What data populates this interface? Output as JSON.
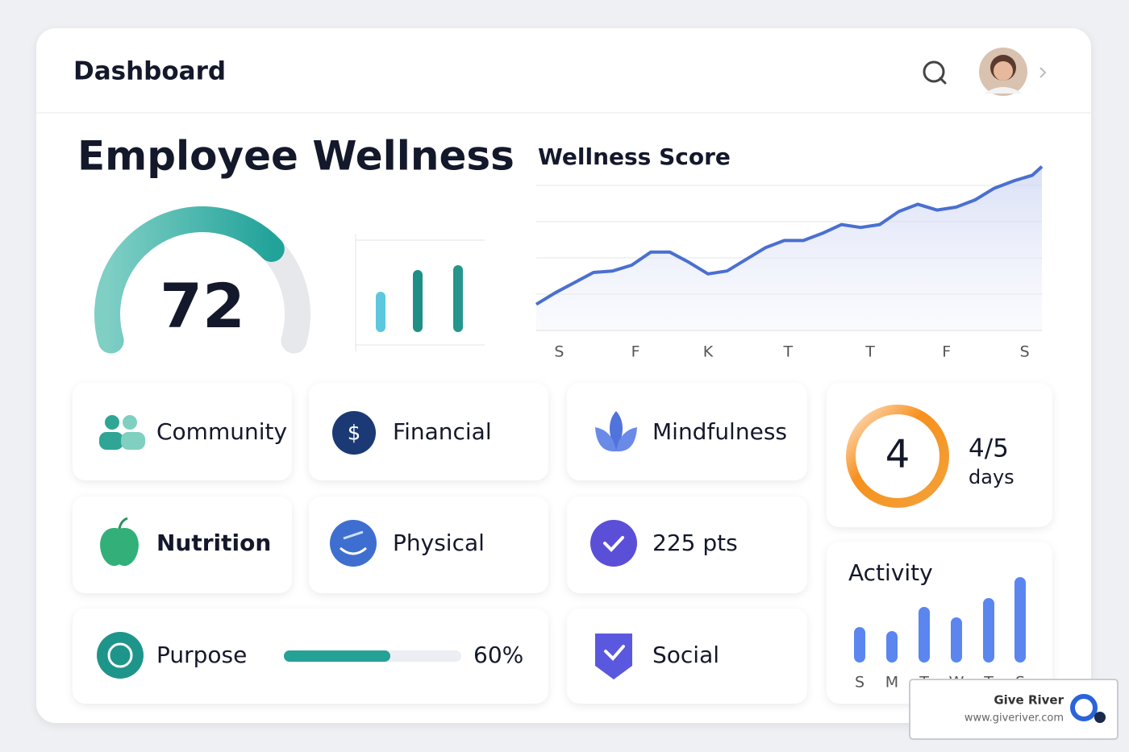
{
  "header": {
    "title": "Dashboard"
  },
  "wellness": {
    "title": "Employee Wellness"
  },
  "gauge": {
    "type": "gauge",
    "value": 72,
    "range": [
      0,
      100
    ]
  },
  "mini_chart": {
    "type": "bar",
    "values": [
      50,
      77,
      83
    ],
    "colors": [
      "#5bc8dd",
      "#1f8f86",
      "#26968c"
    ],
    "ylim": [
      0,
      100
    ]
  },
  "score_chart": {
    "type": "line",
    "title": "Wellness Score",
    "x": [
      0,
      1,
      2,
      3,
      4,
      5,
      6,
      7,
      8,
      9,
      10,
      11,
      12,
      13,
      14,
      15,
      16,
      17,
      18,
      19,
      20,
      21,
      22,
      23,
      24,
      25,
      26,
      26.5
    ],
    "values": [
      18,
      26,
      33,
      40,
      41,
      45,
      54,
      54,
      47,
      39,
      41,
      49,
      57,
      62,
      62,
      67,
      73,
      71,
      73,
      82,
      87,
      83,
      85,
      90,
      98,
      103,
      107,
      113
    ],
    "xlim": [
      0,
      26.5
    ],
    "xticks": [
      {
        "value": 1.2,
        "label": "S"
      },
      {
        "value": 5.2,
        "label": "F"
      },
      {
        "value": 9,
        "label": "K"
      },
      {
        "value": 13.2,
        "label": "T"
      },
      {
        "value": 17.5,
        "label": "T"
      },
      {
        "value": 21.5,
        "label": "F"
      },
      {
        "value": 25.6,
        "label": "S"
      }
    ],
    "ylim": [
      0,
      115
    ],
    "yticks": [
      0,
      25,
      50,
      75,
      100
    ],
    "grid": true,
    "color": "#4a6fd1"
  },
  "tiles": [
    {
      "label": "Community"
    },
    {
      "label": "Financial"
    },
    {
      "label": "Mindfulness"
    },
    {
      "label": "Nutrition"
    },
    {
      "label": "Physical"
    },
    {
      "label": "225 pts"
    },
    {
      "label": "Purpose"
    },
    {
      "label": "Social"
    }
  ],
  "streak": {
    "value": 4,
    "fraction": "4/5",
    "unit": "days"
  },
  "purpose": {
    "value": 60,
    "value_label": "60%",
    "range": [
      0,
      100
    ]
  },
  "activity_chart": {
    "type": "bar",
    "title": "Activity",
    "categories": [
      "S",
      "M",
      "T",
      "W",
      "T",
      "S"
    ],
    "values": [
      44,
      39,
      69,
      56,
      80,
      106
    ],
    "ylim": [
      0,
      110
    ],
    "color": "#5b86f0"
  },
  "watermark": {
    "name": "Give River",
    "url": "www.giveriver.com"
  }
}
